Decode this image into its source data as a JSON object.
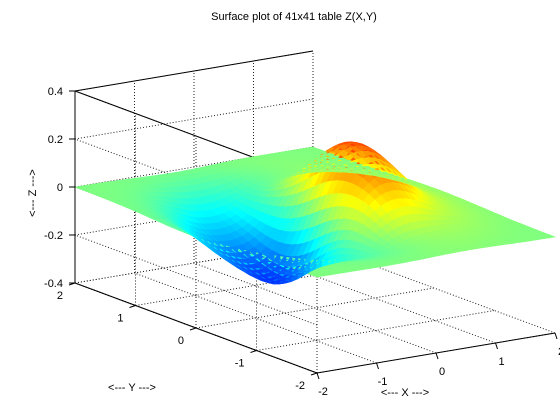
{
  "chart_data": {
    "type": "surface",
    "title": "Surface plot of 41x41 table Z(X,Y)",
    "xlabel": "<--- X --->",
    "ylabel": "<--- Y --->",
    "zlabel": "<--- Z --->",
    "xlim": [
      -2,
      2
    ],
    "ylim": [
      -2,
      2
    ],
    "zlim": [
      -0.4,
      0.4
    ],
    "grid_size": [
      41,
      41
    ],
    "x_ticks": [
      "-2",
      "-1",
      "0",
      "1",
      "2"
    ],
    "y_ticks": [
      "-2",
      "-1",
      "0",
      "1",
      "2"
    ],
    "z_ticks": [
      "-0.4",
      "-0.2",
      "0",
      "0.2",
      "0.4"
    ],
    "colormap": "jet",
    "grid": true,
    "surface_features": {
      "peak_z": 0.38,
      "trough_z": -0.38
    }
  }
}
